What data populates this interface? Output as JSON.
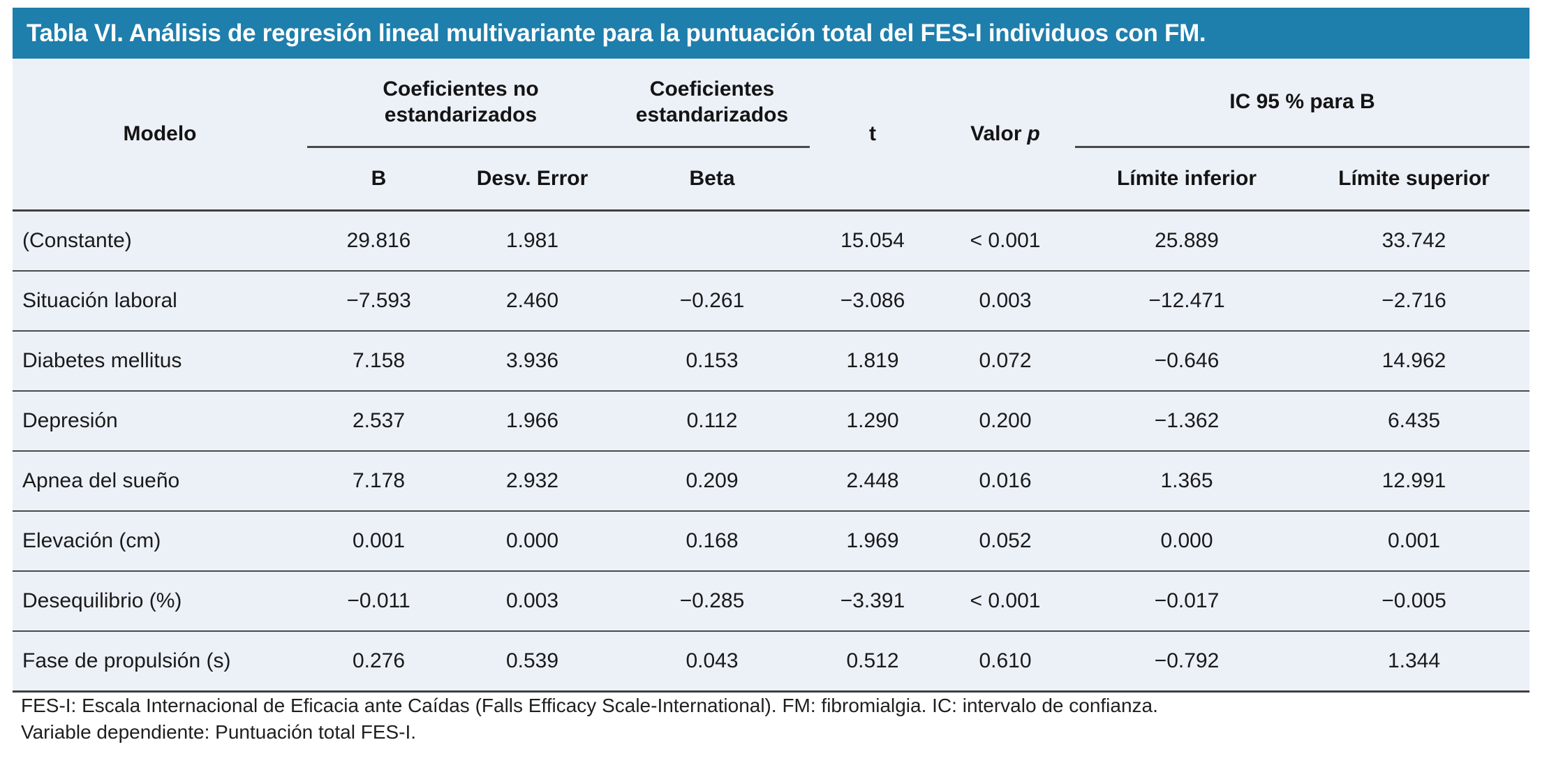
{
  "title": "Tabla VI. Análisis de regresión lineal multivariante para la puntuación total del FES-I individuos con FM.",
  "colors": {
    "title_bar": "#1E7EAC",
    "table_background": "#ECF1F8",
    "rule": "#3F3F3F",
    "title_text": "#FFFFFF"
  },
  "table": {
    "headers": {
      "modelo": "Modelo",
      "coef_no_estandarizados": "Coeficientes no estandarizados",
      "coef_estandarizados": "Coeficientes estandarizados",
      "t": "t",
      "valor_p_prefix": "Valor",
      "valor_p_italic": "p",
      "ic95_para_b": "IC 95 % para B",
      "b": "B",
      "desv_error": "Desv. Error",
      "beta": "Beta",
      "limite_inferior": "Límite inferior",
      "limite_superior": "Límite superior"
    },
    "rows": [
      {
        "label": "(Constante)",
        "values": [
          "29.816",
          "1.981",
          "",
          "15.054",
          "< 0.001",
          "25.889",
          "33.742"
        ]
      },
      {
        "label": "Situación laboral",
        "values": [
          "−7.593",
          "2.460",
          "−0.261",
          "−3.086",
          "0.003",
          "−12.471",
          "−2.716"
        ]
      },
      {
        "label": "Diabetes mellitus",
        "values": [
          "7.158",
          "3.936",
          "0.153",
          "1.819",
          "0.072",
          "−0.646",
          "14.962"
        ]
      },
      {
        "label": "Depresión",
        "values": [
          "2.537",
          "1.966",
          "0.112",
          "1.290",
          "0.200",
          "−1.362",
          "6.435"
        ]
      },
      {
        "label": "Apnea del sueño",
        "values": [
          "7.178",
          "2.932",
          "0.209",
          "2.448",
          "0.016",
          "1.365",
          "12.991"
        ]
      },
      {
        "label": "Elevación (cm)",
        "values": [
          "0.001",
          "0.000",
          "0.168",
          "1.969",
          "0.052",
          "0.000",
          "0.001"
        ]
      },
      {
        "label": "Desequilibrio (%)",
        "values": [
          "−0.011",
          "0.003",
          "−0.285",
          "−3.391",
          "< 0.001",
          "−0.017",
          "−0.005"
        ]
      },
      {
        "label": "Fase de propulsión (s)",
        "values": [
          "0.276",
          "0.539",
          "0.043",
          "0.512",
          "0.610",
          "−0.792",
          "1.344"
        ]
      }
    ]
  },
  "footnotes": [
    "FES-I: Escala Internacional de Eficacia ante Caídas (Falls Efficacy Scale-International). FM: fibromialgia. IC: intervalo de confianza.",
    "Variable dependiente: Puntuación total FES-I."
  ]
}
